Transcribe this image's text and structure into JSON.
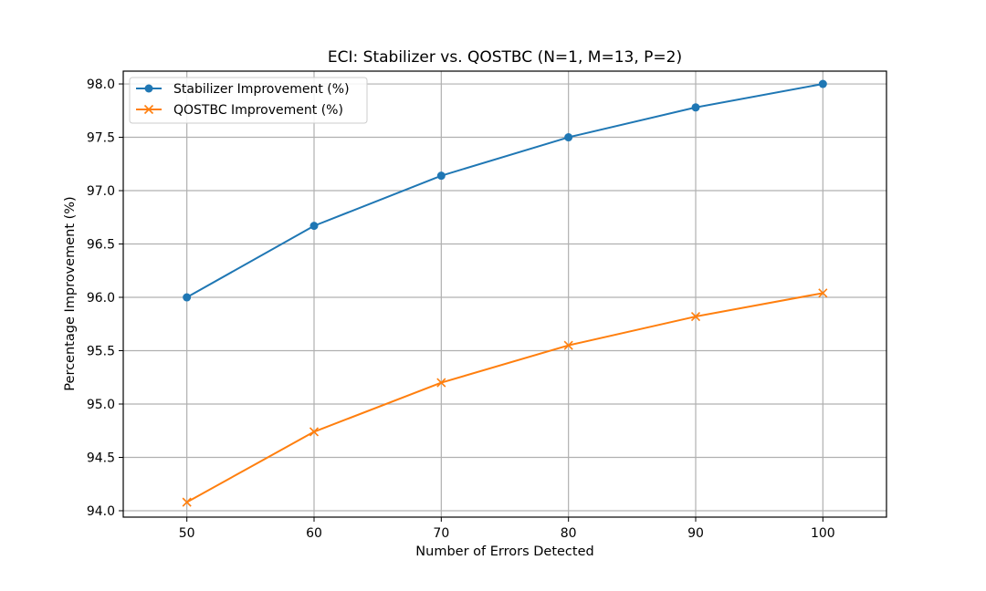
{
  "chart_data": {
    "type": "line",
    "title": "ECI: Stabilizer vs. QOSTBC (N=1, M=13, P=2)",
    "xlabel": "Number of Errors Detected",
    "ylabel": "Percentage Improvement (%)",
    "x": [
      50,
      60,
      70,
      80,
      90,
      100
    ],
    "xlim": [
      45,
      105
    ],
    "ylim": [
      93.94,
      98.12
    ],
    "xticks": [
      "50",
      "60",
      "70",
      "80",
      "90",
      "100"
    ],
    "yticks": [
      "94.0",
      "94.5",
      "95.0",
      "95.5",
      "96.0",
      "96.5",
      "97.0",
      "97.5",
      "98.0"
    ],
    "grid": true,
    "legend_position": "top-left",
    "series": [
      {
        "name": "Stabilizer Improvement (%)",
        "values": [
          96.0,
          96.67,
          97.14,
          97.5,
          97.78,
          98.0
        ],
        "color": "#1f77b4",
        "marker": "circle"
      },
      {
        "name": "QOSTBC Improvement (%)",
        "values": [
          94.08,
          94.74,
          95.2,
          95.55,
          95.82,
          96.04
        ],
        "color": "#ff7f0e",
        "marker": "x"
      }
    ]
  }
}
